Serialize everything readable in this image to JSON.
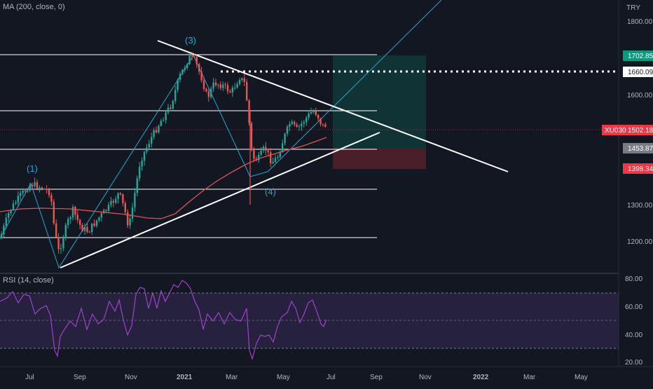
{
  "main_pane": {
    "indicator_label": "MA (200, close, 0)",
    "currency": "TRY",
    "y_ticks": [
      "1800.00",
      "1600.00",
      "1300.00",
      "1200.00"
    ],
    "price_badges": [
      {
        "label": "1702.85",
        "bg": "#089981",
        "fg": "#ffffff"
      },
      {
        "label": "1660.09",
        "bg": "#ffffff",
        "fg": "#131722"
      },
      {
        "label": "1502.18",
        "symbol": "XU030",
        "bg": "#f23645",
        "fg": "#ffffff"
      },
      {
        "label": "1453.87",
        "bg": "#787b86",
        "fg": "#ffffff"
      },
      {
        "label": "1398.34",
        "bg": "#f23645",
        "fg": "#ffffff"
      }
    ],
    "wave_labels": [
      "(1)",
      "(3)",
      "(4)"
    ]
  },
  "rsi_pane": {
    "indicator_label": "RSI (14, close)",
    "y_ticks": [
      "80.00",
      "60.00",
      "40.00",
      "20.00"
    ]
  },
  "x_axis": {
    "labels": [
      "Jul",
      "Sep",
      "Nov",
      "2021",
      "Mar",
      "May",
      "Jul",
      "Sep",
      "Nov",
      "2022",
      "Mar",
      "May"
    ]
  },
  "colors": {
    "background": "#131722",
    "up_candle": "#26a69a",
    "down_candle": "#ef5350",
    "ma_line": "#e05252",
    "trend_line": "#ffffff",
    "fib_line": "#22a6d6",
    "rsi_line": "#a23fd0",
    "rsi_band": "#7e57c2"
  },
  "chart_data": {
    "type": "line",
    "series": [],
    "ma_approx": [
      {
        "x": "2020-06",
        "y": 1300
      },
      {
        "x": "2020-09",
        "y": 1300
      },
      {
        "x": "2020-11",
        "y": 1285
      },
      {
        "x": "2020-12",
        "y": 1320
      },
      {
        "x": "2021-02",
        "y": 1380
      },
      {
        "x": "2021-04",
        "y": 1420
      },
      {
        "x": "2021-06",
        "y": 1465
      }
    ]
  }
}
